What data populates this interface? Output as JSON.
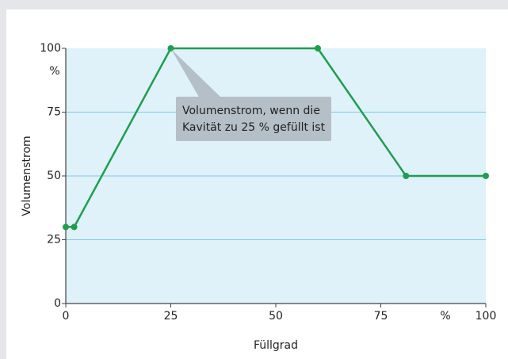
{
  "chart_data": {
    "type": "line",
    "x_label": "Füllgrad",
    "y_label": "Volumenstrom",
    "x_unit": "%",
    "y_unit": "%",
    "x": [
      0,
      2,
      25,
      60,
      81,
      100
    ],
    "values": [
      30,
      30,
      100,
      100,
      50,
      50
    ],
    "color": "#1f9e4f",
    "xlim": [
      0,
      100
    ],
    "ylim": [
      0,
      100
    ],
    "xticks": [
      0,
      25,
      50,
      75,
      100
    ],
    "yticks": [
      0,
      25,
      50,
      75,
      100
    ],
    "grid": true,
    "annotation": [
      "Volumenstrom, wenn die",
      "Kavität zu 25 % gefüllt ist"
    ]
  }
}
